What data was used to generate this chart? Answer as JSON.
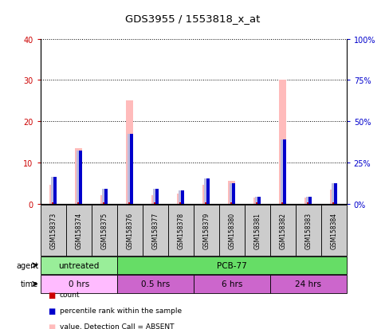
{
  "title": "GDS3955 / 1553818_x_at",
  "samples": [
    "GSM158373",
    "GSM158374",
    "GSM158375",
    "GSM158376",
    "GSM158377",
    "GSM158378",
    "GSM158379",
    "GSM158380",
    "GSM158381",
    "GSM158382",
    "GSM158383",
    "GSM158384"
  ],
  "value_absent": [
    4.5,
    13.5,
    2.0,
    25.0,
    2.0,
    2.5,
    4.5,
    5.5,
    1.5,
    30.0,
    1.5,
    3.5
  ],
  "rank_absent_pct": [
    16.5,
    32.0,
    9.0,
    42.5,
    9.0,
    8.0,
    15.5,
    12.5,
    4.0,
    39.0,
    4.0,
    12.5
  ],
  "count_val": [
    0.4,
    0.4,
    0.4,
    0.4,
    0.4,
    0.4,
    0.4,
    0.4,
    0.4,
    0.4,
    0.4,
    0.4
  ],
  "pct_rank_val": [
    16.5,
    32.0,
    9.0,
    42.5,
    9.0,
    8.0,
    15.5,
    12.5,
    4.0,
    39.0,
    4.0,
    12.5
  ],
  "ylim_left": [
    0,
    40
  ],
  "ylim_right": [
    0,
    100
  ],
  "yticks_left": [
    0,
    10,
    20,
    30,
    40
  ],
  "yticks_right": [
    0,
    25,
    50,
    75,
    100
  ],
  "ytick_labels_left": [
    "0",
    "10",
    "20",
    "30",
    "40"
  ],
  "ytick_labels_right": [
    "0%",
    "25%",
    "50%",
    "75%",
    "100%"
  ],
  "agent_groups": [
    {
      "label": "untreated",
      "start": 0,
      "end": 3,
      "color": "#99ee99"
    },
    {
      "label": "PCB-77",
      "start": 3,
      "end": 12,
      "color": "#66dd66"
    }
  ],
  "time_groups": [
    {
      "label": "0 hrs",
      "start": 0,
      "end": 3,
      "color": "#ffbbff"
    },
    {
      "label": "0.5 hrs",
      "start": 3,
      "end": 6,
      "color": "#cc66cc"
    },
    {
      "label": "6 hrs",
      "start": 6,
      "end": 9,
      "color": "#cc66cc"
    },
    {
      "label": "24 hrs",
      "start": 9,
      "end": 12,
      "color": "#cc66cc"
    }
  ],
  "value_absent_color": "#ffbbbb",
  "rank_absent_color": "#bbbbdd",
  "count_color": "#cc0000",
  "pct_rank_color": "#0000cc",
  "plot_bg": "#ffffff",
  "sample_bg": "#cccccc",
  "left_tick_color": "#cc0000",
  "right_tick_color": "#0000cc"
}
